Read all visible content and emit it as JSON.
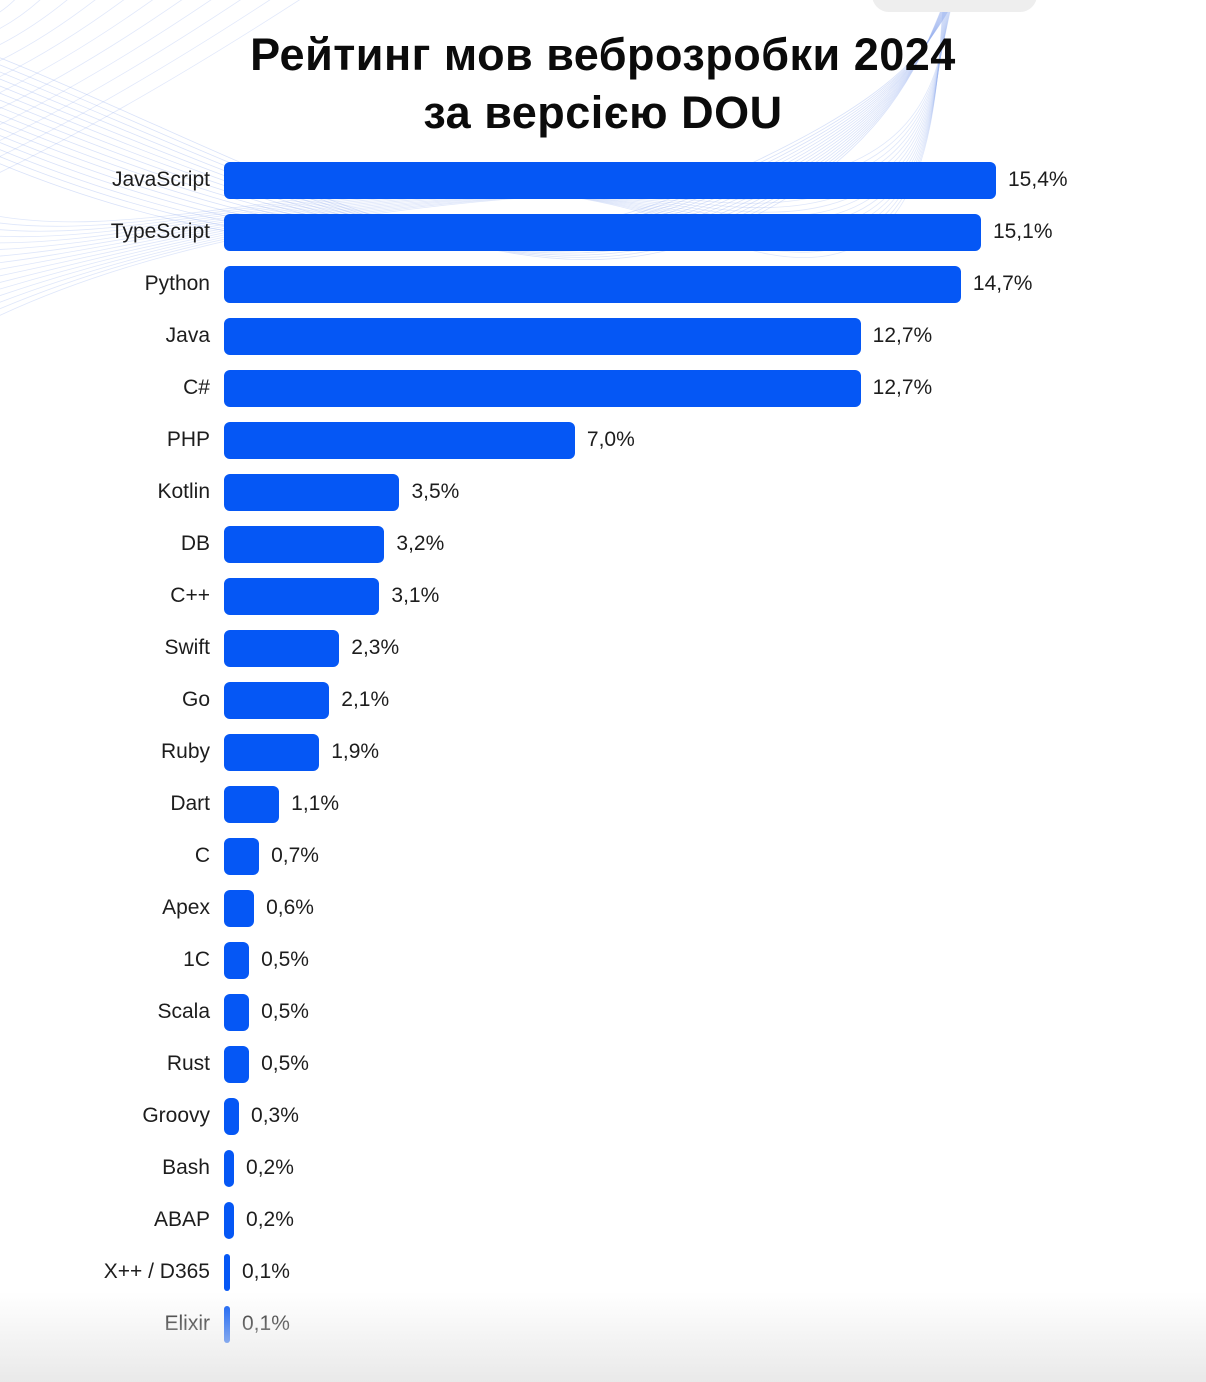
{
  "title": {
    "line1": "Рейтинг мов веброзробки 2024",
    "line2": "за версією DOU"
  },
  "colors": {
    "bar": "#0557f5",
    "text": "#1d1d1d",
    "title": "#0b0b0b",
    "wave": "#9ab4ef",
    "footer_fade": "#e9e9e9"
  },
  "chart_data": {
    "type": "bar",
    "orientation": "horizontal",
    "title": "Рейтинг мов веброзробки 2024 за версією DOU",
    "xlabel": "",
    "ylabel": "",
    "xlim": [
      0,
      15.4
    ],
    "grid": false,
    "legend": null,
    "bar_color": "#0557f5",
    "categories": [
      "JavaScript",
      "TypeScript",
      "Python",
      "Java",
      "C#",
      "PHP",
      "Kotlin",
      "DB",
      "C++",
      "Swift",
      "Go",
      "Ruby",
      "Dart",
      "C",
      "Apex",
      "1C",
      "Scala",
      "Rust",
      "Groovy",
      "Bash",
      "ABAP",
      "X++ / D365",
      "Elixir"
    ],
    "values": [
      15.4,
      15.1,
      14.7,
      12.7,
      12.7,
      7.0,
      3.5,
      3.2,
      3.1,
      2.3,
      2.1,
      1.9,
      1.1,
      0.7,
      0.6,
      0.5,
      0.5,
      0.5,
      0.3,
      0.2,
      0.2,
      0.1,
      0.1
    ],
    "value_labels": [
      "15,4%",
      "15,1%",
      "14,7%",
      "12,7%",
      "12,7%",
      "7,0%",
      "3,5%",
      "3,2%",
      "3,1%",
      "2,3%",
      "2,1%",
      "1,9%",
      "1,1%",
      "0,7%",
      "0,6%",
      "0,5%",
      "0,5%",
      "0,5%",
      "0,3%",
      "0,2%",
      "0,2%",
      "0,1%",
      "0,1%"
    ]
  }
}
